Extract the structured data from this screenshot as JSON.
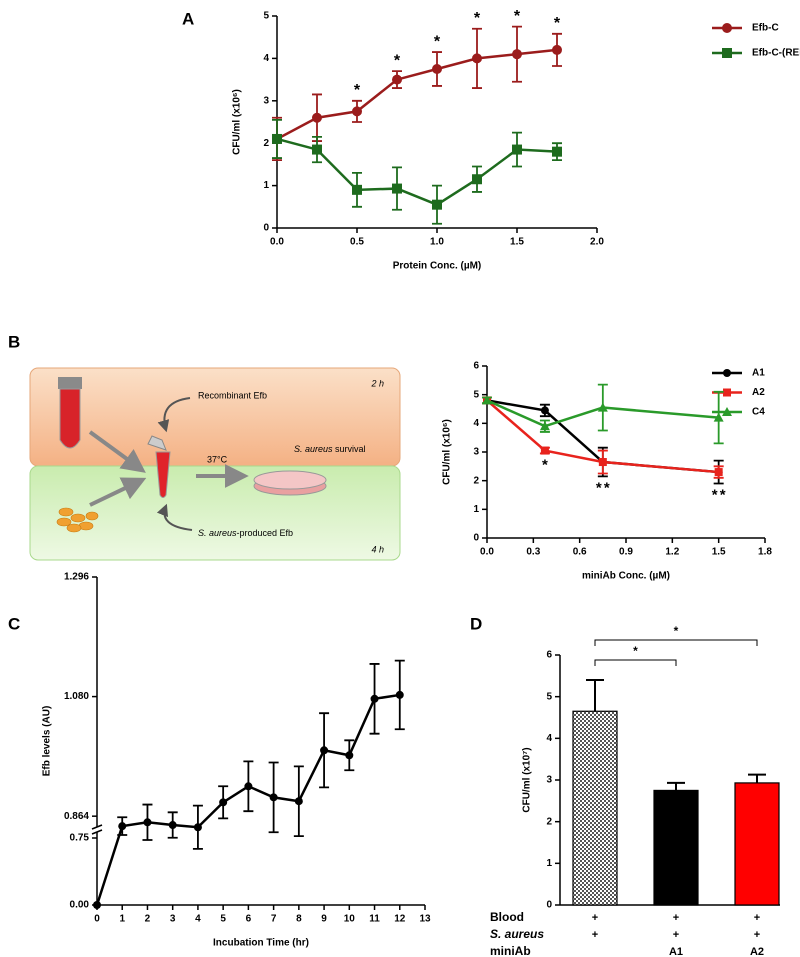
{
  "chart_data": [
    {
      "panel": "A",
      "type": "line",
      "xlabel": "Protein Conc. (µM)",
      "ylabel": "CFU/ml (x10⁶)",
      "x": [
        0,
        0.25,
        0.5,
        0.75,
        1.0,
        1.25,
        1.5,
        1.75
      ],
      "series": [
        {
          "name": "Efb-C",
          "color": "#9b1c1c",
          "marker": "circle",
          "values": [
            2.1,
            2.6,
            2.75,
            3.5,
            3.75,
            4.0,
            4.1,
            4.2
          ],
          "errors": [
            0.5,
            0.55,
            0.25,
            0.2,
            0.4,
            0.7,
            0.65,
            0.38
          ]
        },
        {
          "name": "Efb-C-(RENE)",
          "color": "#1e6b1e",
          "marker": "square",
          "values": [
            2.1,
            1.85,
            0.9,
            0.93,
            0.55,
            1.15,
            1.85,
            1.8
          ],
          "errors": [
            0.45,
            0.3,
            0.4,
            0.5,
            0.45,
            0.3,
            0.4,
            0.2
          ]
        }
      ],
      "xlim": [
        0,
        2
      ],
      "xticks": [
        {
          "value": 0,
          "label": "0.0"
        },
        {
          "value": 0.5,
          "label": "0.5"
        },
        {
          "value": 1,
          "label": "1.0"
        },
        {
          "value": 1.5,
          "label": "1.5"
        },
        {
          "value": 2,
          "label": "2.0"
        }
      ],
      "ylim": [
        0,
        5
      ],
      "yticks": [
        0,
        1,
        2,
        3,
        4,
        5
      ],
      "legend": "right",
      "annotations": [
        {
          "text": "*",
          "x": 0.5
        },
        {
          "text": "*",
          "x": 0.75
        },
        {
          "text": "*",
          "x": 1.0
        },
        {
          "text": "*",
          "x": 1.25
        },
        {
          "text": "*",
          "x": 1.5
        },
        {
          "text": "*",
          "x": 1.75
        }
      ]
    },
    {
      "panel": "B",
      "type": "line",
      "xlabel": "miniAb Conc. (µM)",
      "ylabel": "CFU/ml (x10⁶)",
      "x": [
        0,
        0.375,
        0.75,
        1.5
      ],
      "series": [
        {
          "name": "A1",
          "color": "#000000",
          "marker": "circle",
          "values": [
            4.8,
            4.45,
            2.65,
            2.3
          ],
          "errors": [
            0.1,
            0.2,
            0.5,
            0.4
          ]
        },
        {
          "name": "A2",
          "color": "#e8231d",
          "marker": "square",
          "values": [
            4.8,
            3.05,
            2.65,
            2.3
          ],
          "errors": [
            0.1,
            0.1,
            0.4,
            0.2
          ]
        },
        {
          "name": "C4",
          "color": "#2a9a2a",
          "marker": "triangle",
          "values": [
            4.8,
            3.9,
            4.55,
            4.2
          ],
          "errors": [
            0.1,
            0.2,
            0.8,
            0.9
          ]
        }
      ],
      "xlim": [
        0,
        1.8
      ],
      "xticks": [
        {
          "value": 0,
          "label": "0.0"
        },
        0.3,
        0.6,
        0.9,
        1.2,
        1.5,
        1.8
      ],
      "ylim": [
        0,
        6
      ],
      "yticks": [
        0,
        1,
        2,
        3,
        4,
        5,
        6
      ],
      "legend": "right",
      "annotations": [
        {
          "text": "*",
          "x": 0.375,
          "series": 1
        },
        {
          "text": "*",
          "x": 0.75,
          "series": 1
        },
        {
          "text": "*",
          "x": 0.75,
          "series": 0
        },
        {
          "text": "*",
          "x": 1.5,
          "series": 1
        },
        {
          "text": "*",
          "x": 1.5,
          "series": 0
        }
      ]
    },
    {
      "panel": "C",
      "type": "line",
      "xlabel": "Incubation Time (hr)",
      "ylabel": "Efb levels (AU)",
      "x": [
        0,
        1,
        2,
        3,
        4,
        5,
        6,
        7,
        8,
        9,
        10,
        11,
        12
      ],
      "series": [
        {
          "color": "#000000",
          "marker": "circle",
          "values": [
            0,
            0.846,
            0.853,
            0.848,
            0.844,
            0.889,
            0.918,
            0.898,
            0.891,
            0.983,
            0.974,
            1.076,
            1.083
          ],
          "errors": [
            0,
            0.016,
            0.032,
            0.023,
            0.039,
            0.029,
            0.045,
            0.063,
            0.063,
            0.067,
            0.027,
            0.063,
            0.062
          ]
        }
      ],
      "xlim": [
        0,
        13
      ],
      "xticks": [
        0,
        1,
        2,
        3,
        4,
        5,
        6,
        7,
        8,
        9,
        10,
        11,
        12,
        13
      ],
      "ylim": [
        0,
        1.296
      ],
      "ybreak": [
        0.75,
        0.83
      ],
      "yticks": [
        {
          "value": 0,
          "label": "0.00"
        },
        0.75,
        0.864,
        {
          "value": 1.08,
          "label": "1.080"
        },
        1.296
      ]
    },
    {
      "panel": "D",
      "type": "bar",
      "ylabel": "CFU/ml (x10⁷)",
      "values": [
        4.65,
        2.75,
        2.93
      ],
      "errors": [
        0.75,
        0.18,
        0.2
      ],
      "colors": [
        "#555555",
        "#000000",
        "#ff0000"
      ],
      "patterns": [
        "checker",
        null,
        null
      ],
      "ylim": [
        0,
        6
      ],
      "yticks": [
        0,
        1,
        2,
        3,
        4,
        5,
        6
      ],
      "comparisons": [
        {
          "from": 0,
          "to": 1,
          "label": "*"
        },
        {
          "from": 0,
          "to": 2,
          "label": "*"
        }
      ],
      "table": [
        {
          "label": "Blood",
          "cells": [
            "+",
            "+",
            "+"
          ]
        },
        {
          "label": "S. aureus",
          "cells": [
            "+",
            "+",
            "+"
          ]
        },
        {
          "label": "miniAb",
          "cells": [
            null,
            "A1",
            "A2"
          ]
        }
      ]
    }
  ],
  "diagram": {
    "top_time": "2 h",
    "bottom_time": "4 h",
    "recombinant": "Recombinant Efb",
    "temperature": "37°C",
    "organism": "S. aureus",
    "survival": " survival",
    "produced": "-produced Efb"
  }
}
